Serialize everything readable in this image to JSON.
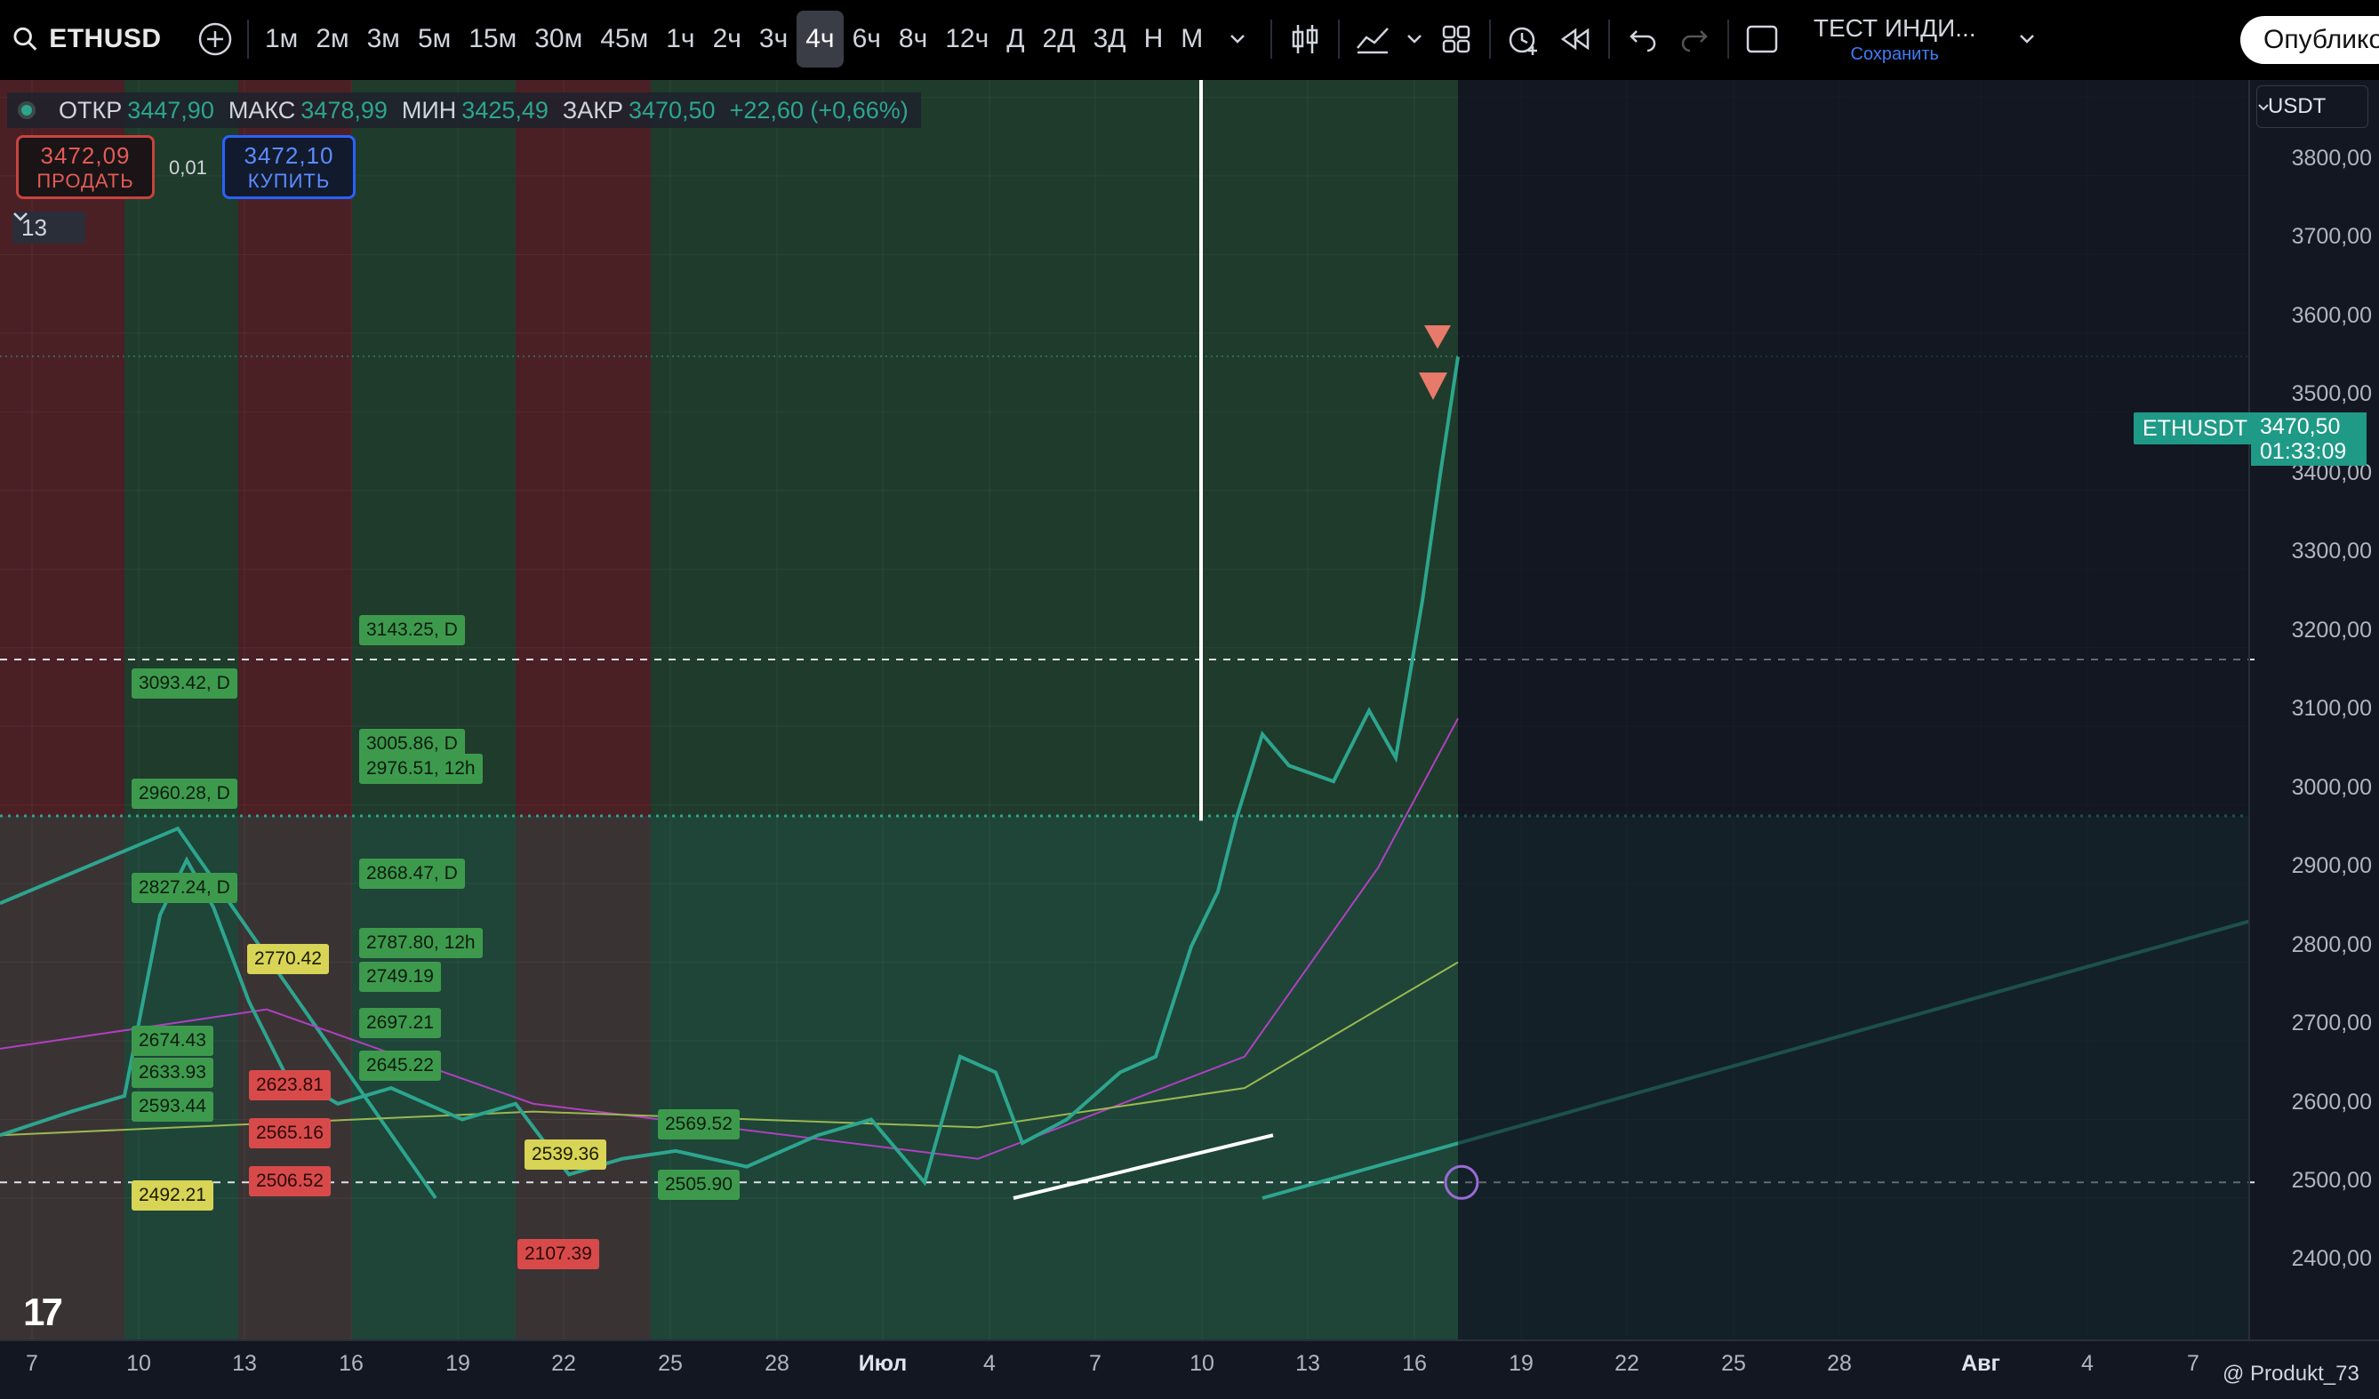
{
  "toolbar": {
    "symbol": "ETHUSD",
    "intervals": [
      "1м",
      "2м",
      "3м",
      "5м",
      "15м",
      "30м",
      "45м",
      "1ч",
      "2ч",
      "3ч",
      "4ч",
      "6ч",
      "8ч",
      "12ч",
      "Д",
      "2Д",
      "3Д",
      "Н",
      "М"
    ],
    "active_interval": "4ч",
    "layout_title": "ТЕСТ ИНДИ...",
    "save_label": "Сохранить",
    "publish_label": "Опублико"
  },
  "legend": {
    "open_label": "ОТКР",
    "open": "3447,90",
    "high_label": "МАКС",
    "high": "3478,99",
    "low_label": "МИН",
    "low": "3425,49",
    "close_label": "ЗАКР",
    "close": "3470,50",
    "change": "+22,60 (+0,66%)"
  },
  "trade": {
    "sell_price": "3472,09",
    "sell_label": "ПРОДАТЬ",
    "spread": "0,01",
    "buy_price": "3472,10",
    "buy_label": "КУПИТЬ",
    "indicators_count": "13"
  },
  "currency": "USDT",
  "price_axis": [
    "3800,00",
    "3700,00",
    "3600,00",
    "3500,00",
    "3400,00",
    "3300,00",
    "3200,00",
    "3100,00",
    "3000,00",
    "2900,00",
    "2800,00",
    "2700,00",
    "2600,00",
    "2500,00",
    "2400,00"
  ],
  "time_axis": [
    "7",
    "10",
    "13",
    "16",
    "19",
    "22",
    "25",
    "28",
    "Июл",
    "4",
    "7",
    "10",
    "13",
    "16",
    "19",
    "22",
    "25",
    "28",
    "Авг",
    "4",
    "7"
  ],
  "last_price": {
    "symbol": "ETHUSDT",
    "price": "3470,50",
    "countdown": "01:33:09"
  },
  "level_labels": [
    {
      "text": "3143.25, D",
      "color": "g"
    },
    {
      "text": "3093.42, D",
      "color": "g"
    },
    {
      "text": "3005.86, D",
      "color": "g"
    },
    {
      "text": "2976.51, 12h",
      "color": "g"
    },
    {
      "text": "2960.28, D",
      "color": "g"
    },
    {
      "text": "2868.47, D",
      "color": "g"
    },
    {
      "text": "2827.24, D",
      "color": "g"
    },
    {
      "text": "2787.80, 12h",
      "color": "g"
    },
    {
      "text": "2770.42",
      "color": "y"
    },
    {
      "text": "2749.19",
      "color": "g"
    },
    {
      "text": "2697.21",
      "color": "g"
    },
    {
      "text": "2674.43",
      "color": "g"
    },
    {
      "text": "2645.22",
      "color": "g"
    },
    {
      "text": "2633.93",
      "color": "g"
    },
    {
      "text": "2623.81",
      "color": "r"
    },
    {
      "text": "2593.44",
      "color": "g"
    },
    {
      "text": "2569.52",
      "color": "g"
    },
    {
      "text": "2565.16",
      "color": "r"
    },
    {
      "text": "2539.36",
      "color": "y"
    },
    {
      "text": "2506.52",
      "color": "r"
    },
    {
      "text": "2505.90",
      "color": "g"
    },
    {
      "text": "2492.21",
      "color": "y"
    },
    {
      "text": "2107.39",
      "color": "r"
    }
  ],
  "author": "@ Produkt_73"
}
